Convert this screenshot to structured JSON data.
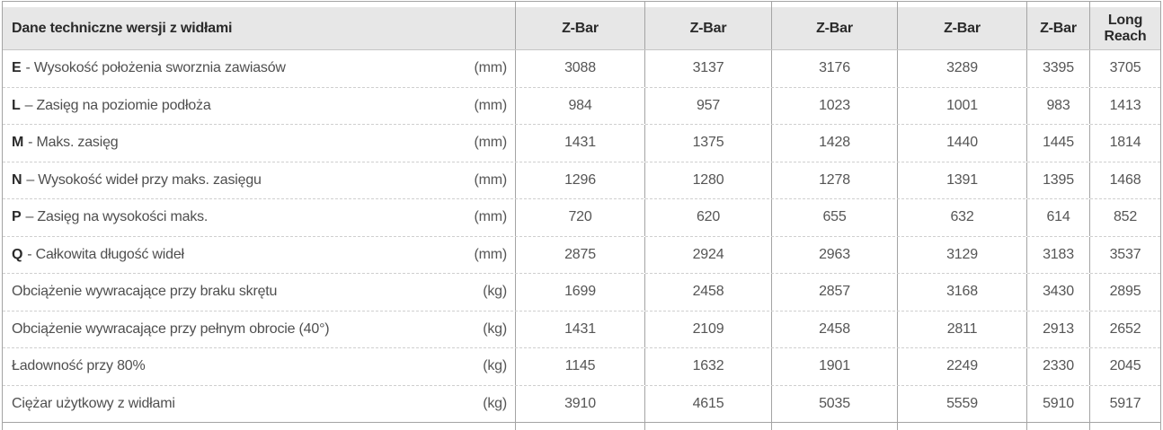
{
  "table": {
    "title": "Dane techniczne wersji z widłami",
    "columns": [
      "Z-Bar",
      "Z-Bar",
      "Z-Bar",
      "Z-Bar",
      "Z-Bar",
      "Long Reach"
    ],
    "rows": [
      {
        "prefix": "E",
        "rest": "- Wysokość położenia sworznia zawiasów",
        "unit": "(mm)",
        "values": [
          "3088",
          "3137",
          "3176",
          "3289",
          "3395",
          "3705"
        ]
      },
      {
        "prefix": "L",
        "rest": "– Zasięg na poziomie podłoża",
        "unit": "(mm)",
        "values": [
          "984",
          "957",
          "1023",
          "1001",
          "983",
          "1413"
        ]
      },
      {
        "prefix": "M",
        "rest": "- Maks. zasięg",
        "unit": "(mm)",
        "values": [
          "1431",
          "1375",
          "1428",
          "1440",
          "1445",
          "1814"
        ]
      },
      {
        "prefix": "N",
        "rest": "– Wysokość wideł przy maks. zasięgu",
        "unit": "(mm)",
        "values": [
          "1296",
          "1280",
          "1278",
          "1391",
          "1395",
          "1468"
        ]
      },
      {
        "prefix": "P",
        "rest": "– Zasięg na wysokości maks.",
        "unit": "(mm)",
        "values": [
          "720",
          "620",
          "655",
          "632",
          "614",
          "852"
        ]
      },
      {
        "prefix": "Q",
        "rest": "- Całkowita długość wideł",
        "unit": "(mm)",
        "values": [
          "2875",
          "2924",
          "2963",
          "3129",
          "3183",
          "3537"
        ]
      },
      {
        "prefix": "",
        "rest": "Obciążenie wywracające przy braku skrętu",
        "unit": "(kg)",
        "values": [
          "1699",
          "2458",
          "2857",
          "3168",
          "3430",
          "2895"
        ]
      },
      {
        "prefix": "",
        "rest": "Obciążenie wywracające przy pełnym obrocie (40°)",
        "unit": "(kg)",
        "values": [
          "1431",
          "2109",
          "2458",
          "2811",
          "2913",
          "2652"
        ]
      },
      {
        "prefix": "",
        "rest": "Ładowność przy 80%",
        "unit": "(kg)",
        "values": [
          "1145",
          "1632",
          "1901",
          "2249",
          "2330",
          "2045"
        ]
      },
      {
        "prefix": "",
        "rest": "Ciężar użytkowy z widłami",
        "unit": "(kg)",
        "values": [
          "3910",
          "4615",
          "5035",
          "5559",
          "5910",
          "5917"
        ]
      }
    ]
  },
  "colors": {
    "header_background": "#e7e7e7",
    "solid_border": "#a4a4a4",
    "dashed_border": "#cfcfcf",
    "header_text": "#2a2a2a",
    "body_text": "#555555"
  }
}
